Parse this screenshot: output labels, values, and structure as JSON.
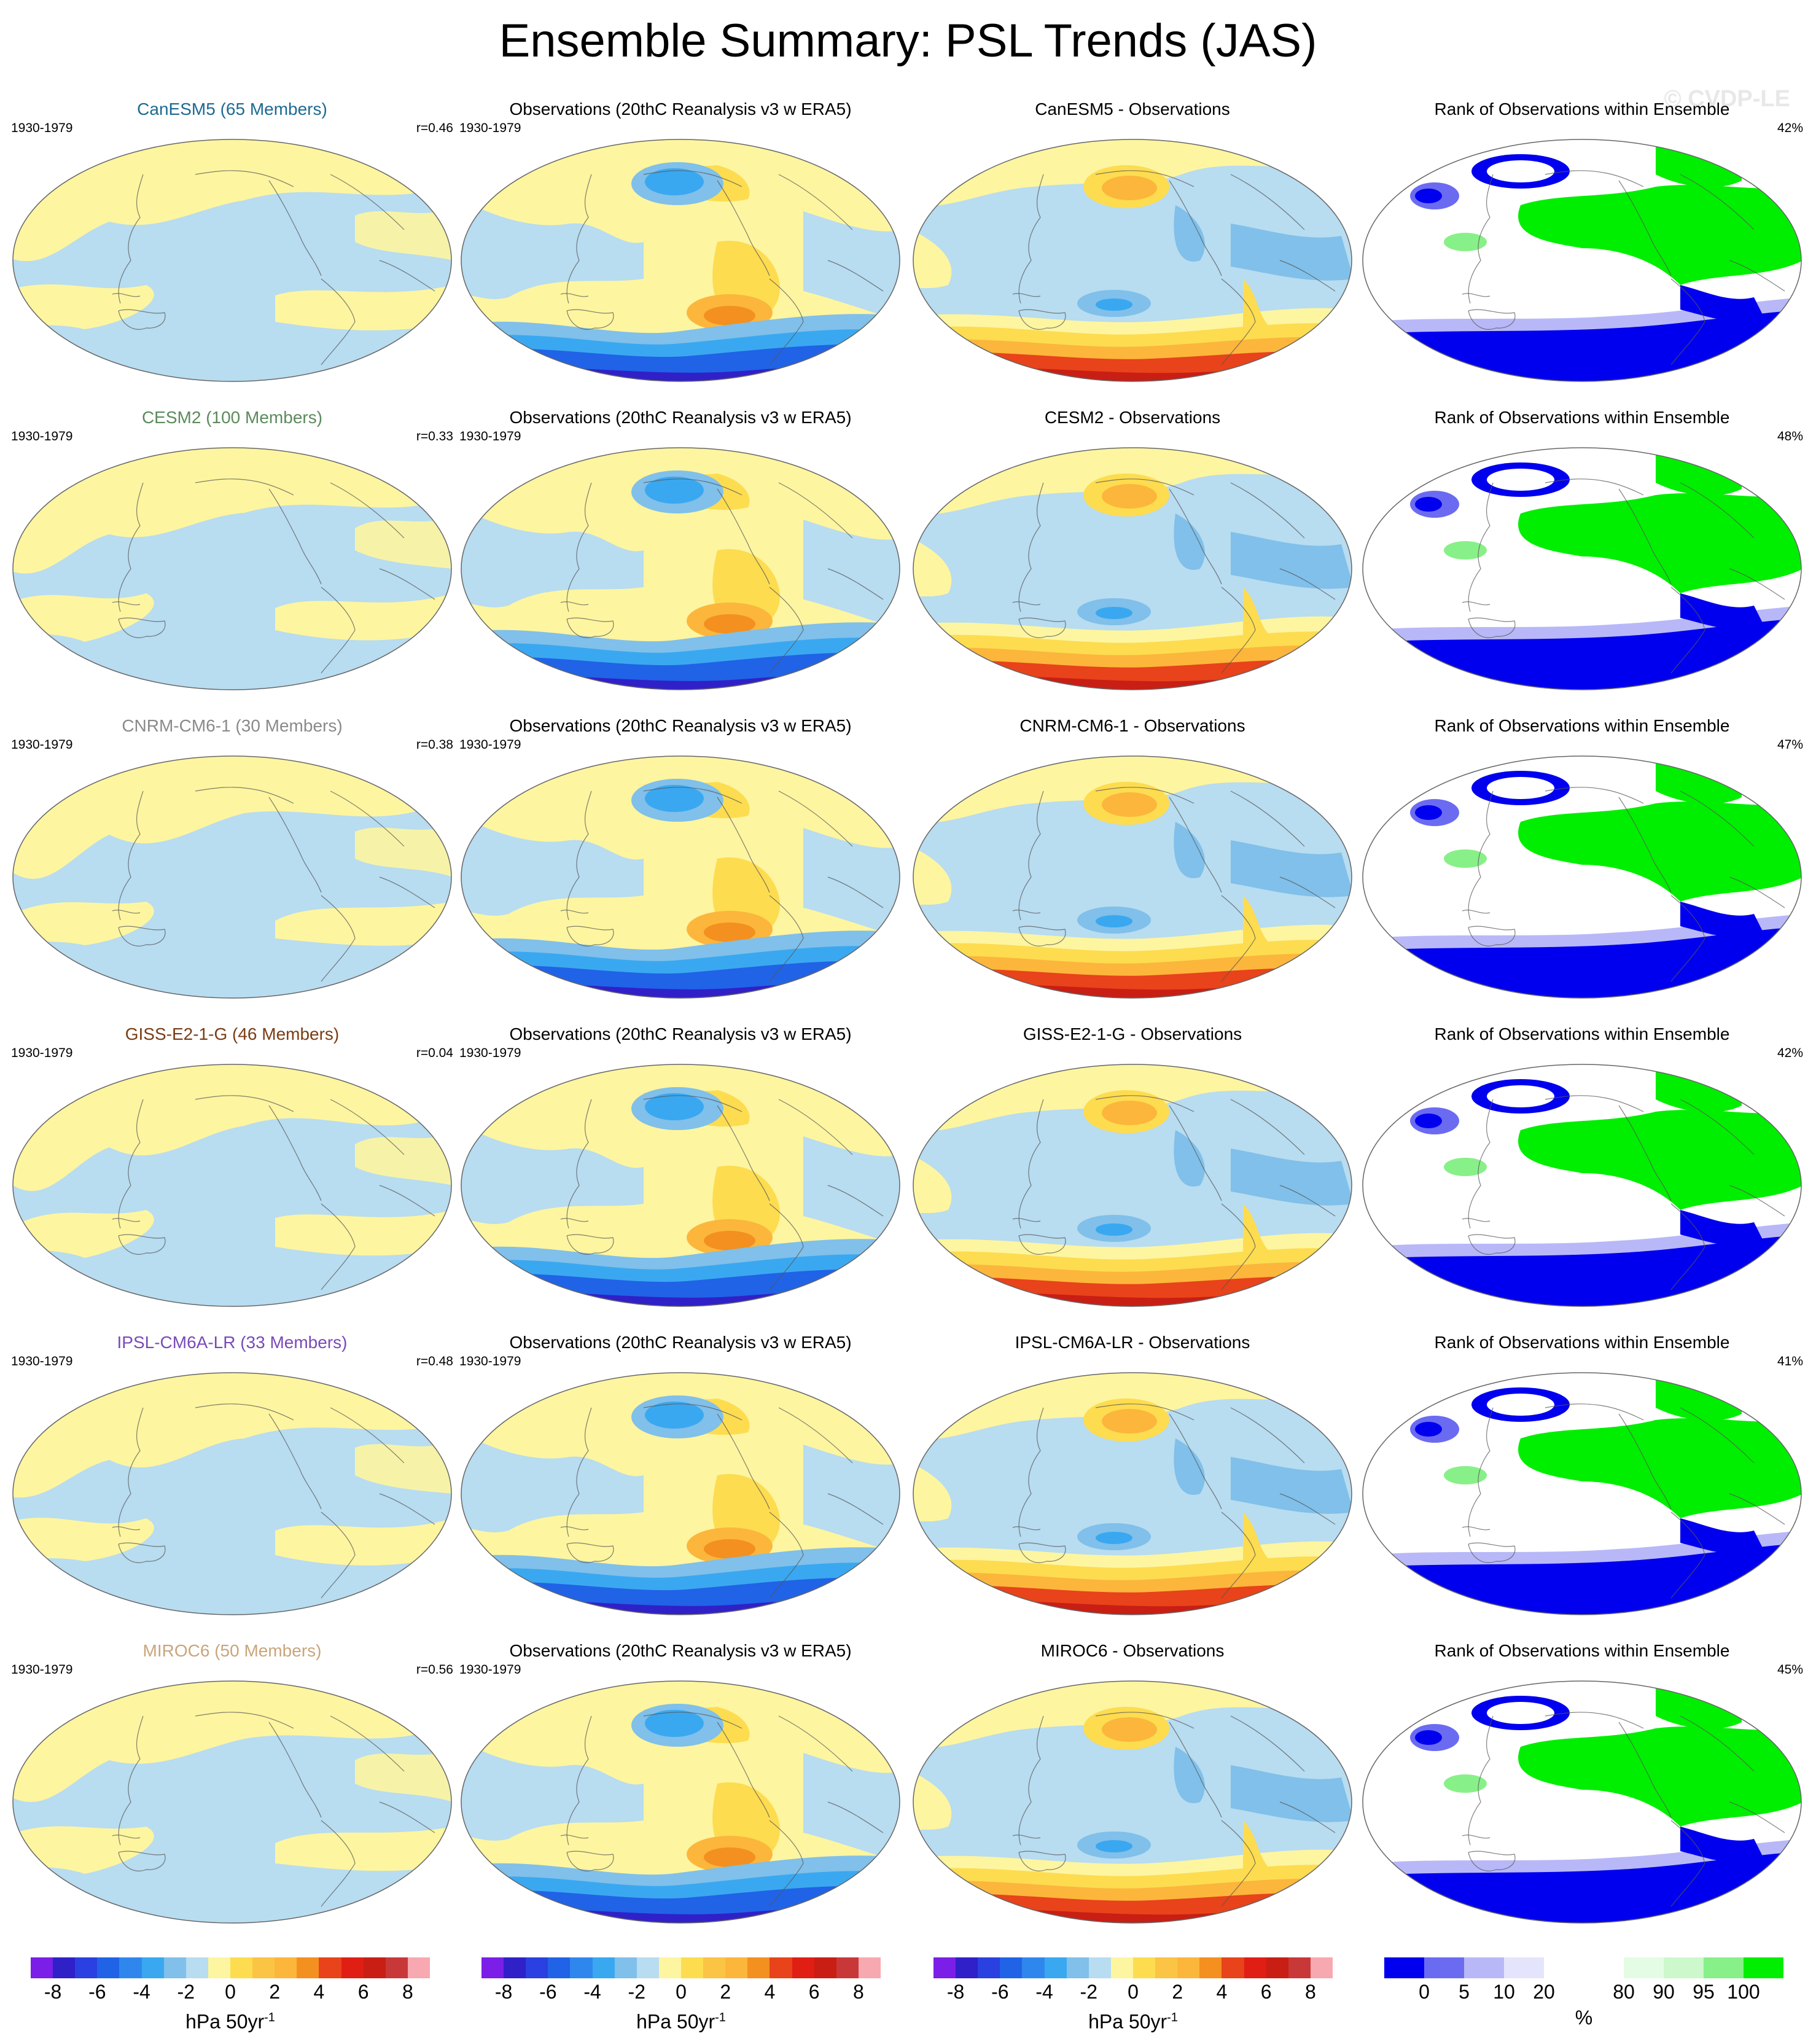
{
  "title": "Ensemble Summary: PSL Trends (JAS)",
  "watermark": "© CVDP-LE",
  "colors": {
    "pos_light": "#fdf5a0",
    "neg_light": "#b8dcf0",
    "yellow": "#fddc50",
    "orange": "#fcb63c",
    "orange_dark": "#f39020",
    "red": "#e8431a",
    "red_dark": "#c81e14",
    "blue_mid": "#80c0ea",
    "blue": "#3aa8f0",
    "blue_dark": "#2063e6",
    "blue_deep": "#3020c8",
    "rank_low": "#0000ee",
    "rank_low2": "#6b6bf2",
    "rank_low3": "#b8b8f8",
    "rank_high": "#00ee00",
    "rank_high2": "#88f088",
    "rank_high3": "#ccf8cc"
  },
  "rows": [
    {
      "model": "CanESM5 (65 Members)",
      "model_color": "#1c6a92",
      "period": "1930-1979",
      "r": "r=0.46",
      "obs_title": "Observations (20thC Reanalysis v3 w ERA5)",
      "obs_period": "1930-1979",
      "diff_title": "CanESM5 - Observations",
      "rank_title": "Rank of Observations within Ensemble",
      "rank_pct": "42%"
    },
    {
      "model": "CESM2 (100 Members)",
      "model_color": "#5c8a5c",
      "period": "1930-1979",
      "r": "r=0.33",
      "obs_title": "Observations (20thC Reanalysis v3 w ERA5)",
      "obs_period": "1930-1979",
      "diff_title": "CESM2 - Observations",
      "rank_title": "Rank of Observations within Ensemble",
      "rank_pct": "48%"
    },
    {
      "model": "CNRM-CM6-1 (30 Members)",
      "model_color": "#8a8a8a",
      "period": "1930-1979",
      "r": "r=0.38",
      "obs_title": "Observations (20thC Reanalysis v3 w ERA5)",
      "obs_period": "1930-1979",
      "diff_title": "CNRM-CM6-1 - Observations",
      "rank_title": "Rank of Observations within Ensemble",
      "rank_pct": "47%"
    },
    {
      "model": "GISS-E2-1-G (46 Members)",
      "model_color": "#7a3c14",
      "period": "1930-1979",
      "r": "r=0.04",
      "obs_title": "Observations (20thC Reanalysis v3 w ERA5)",
      "obs_period": "1930-1979",
      "diff_title": "GISS-E2-1-G - Observations",
      "rank_title": "Rank of Observations within Ensemble",
      "rank_pct": "42%"
    },
    {
      "model": "IPSL-CM6A-LR (33 Members)",
      "model_color": "#7a4ab8",
      "period": "1930-1979",
      "r": "r=0.48",
      "obs_title": "Observations (20thC Reanalysis v3 w ERA5)",
      "obs_period": "1930-1979",
      "diff_title": "IPSL-CM6A-LR - Observations",
      "rank_title": "Rank of Observations within Ensemble",
      "rank_pct": "41%"
    },
    {
      "model": "MIROC6 (50 Members)",
      "model_color": "#c9a57c",
      "period": "1930-1979",
      "r": "r=0.56",
      "obs_title": "Observations (20thC Reanalysis v3 w ERA5)",
      "obs_period": "1930-1979",
      "diff_title": "MIROC6 - Observations",
      "rank_title": "Rank of Observations within Ensemble",
      "rank_pct": "45%"
    }
  ],
  "colorbars": [
    {
      "ticks": [
        "-8",
        "-6",
        "-4",
        "-2",
        "0",
        "2",
        "4",
        "6",
        "8"
      ],
      "label": "hPa 50yr",
      "label_sup": "-1",
      "segments": [
        "#7a1ee8",
        "#3020c8",
        "#2a40e0",
        "#2063e6",
        "#2f87ee",
        "#3aa8f0",
        "#80c0ea",
        "#b8dcf0",
        "#fdf5a0",
        "#fddc50",
        "#fcc444",
        "#fcb63c",
        "#f39020",
        "#e8431a",
        "#e01e14",
        "#c81e14",
        "#c83838",
        "#f8a8b0"
      ]
    },
    {
      "ticks": [
        "-8",
        "-6",
        "-4",
        "-2",
        "0",
        "2",
        "4",
        "6",
        "8"
      ],
      "label": "hPa 50yr",
      "label_sup": "-1",
      "segments": [
        "#7a1ee8",
        "#3020c8",
        "#2a40e0",
        "#2063e6",
        "#2f87ee",
        "#3aa8f0",
        "#80c0ea",
        "#b8dcf0",
        "#fdf5a0",
        "#fddc50",
        "#fcc444",
        "#fcb63c",
        "#f39020",
        "#e8431a",
        "#e01e14",
        "#c81e14",
        "#c83838",
        "#f8a8b0"
      ]
    },
    {
      "ticks": [
        "-8",
        "-6",
        "-4",
        "-2",
        "0",
        "2",
        "4",
        "6",
        "8"
      ],
      "label": "hPa 50yr",
      "label_sup": "-1",
      "segments": [
        "#7a1ee8",
        "#3020c8",
        "#2a40e0",
        "#2063e6",
        "#2f87ee",
        "#3aa8f0",
        "#80c0ea",
        "#b8dcf0",
        "#fdf5a0",
        "#fddc50",
        "#fcc444",
        "#fcb63c",
        "#f39020",
        "#e8431a",
        "#e01e14",
        "#c81e14",
        "#c83838",
        "#f8a8b0"
      ]
    },
    {
      "ticks": [
        "0",
        "5",
        "10",
        "20",
        "80",
        "90",
        "95",
        "100"
      ],
      "label": "%",
      "label_sup": "",
      "segments": [
        "#0000ee",
        "#6b6bf2",
        "#b8b8f8",
        "#e4e4fc",
        "#ffffff",
        "#ffffff",
        "#e4fce4",
        "#ccf8cc",
        "#88f088",
        "#00ee00"
      ]
    }
  ]
}
